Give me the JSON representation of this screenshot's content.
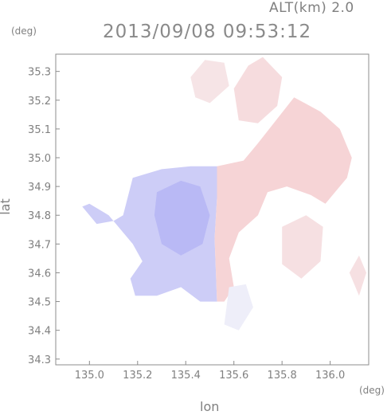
{
  "header": {
    "altitude_label": "ALT(km) 2.0",
    "timestamp": "2013/09/08 09:53:12"
  },
  "axes": {
    "x_unit": "(deg)",
    "y_unit": "(deg)",
    "x_label": "lon",
    "y_label": "lat"
  },
  "chart_data": {
    "type": "heatmap",
    "title": "2013/09/08 09:53:12",
    "subtitle": "ALT(km) 2.0",
    "xlabel": "lon",
    "ylabel": "lat",
    "xlim": [
      134.86,
      136.16
    ],
    "ylim": [
      34.28,
      35.36
    ],
    "x_ticks": [
      "135.0",
      "135.2",
      "135.4",
      "135.6",
      "135.8",
      "136.0"
    ],
    "y_ticks": [
      "34.3",
      "34.4",
      "34.5",
      "34.6",
      "34.7",
      "34.8",
      "34.9",
      "35.0",
      "35.1",
      "35.2",
      "35.3"
    ],
    "colormap": {
      "negative": "#aaaaf4",
      "zero": "#f7f7fa",
      "positive": "#f4aaaa"
    },
    "legend": "none",
    "grid": false,
    "regions": [
      {
        "name": "negative-west",
        "sign": "negative",
        "intensity": 0.55,
        "polygon": [
          [
            135.18,
            34.93
          ],
          [
            135.3,
            34.96
          ],
          [
            135.42,
            34.97
          ],
          [
            135.53,
            34.97
          ],
          [
            135.53,
            34.86
          ],
          [
            135.52,
            34.72
          ],
          [
            135.53,
            34.5
          ],
          [
            135.46,
            34.5
          ],
          [
            135.38,
            34.55
          ],
          [
            135.28,
            34.52
          ],
          [
            135.19,
            34.52
          ],
          [
            135.17,
            34.58
          ],
          [
            135.22,
            34.64
          ],
          [
            135.18,
            34.7
          ],
          [
            135.08,
            34.8
          ],
          [
            135.0,
            34.84
          ],
          [
            134.97,
            34.83
          ],
          [
            135.03,
            34.77
          ],
          [
            135.1,
            34.78
          ],
          [
            135.14,
            34.8
          ]
        ]
      },
      {
        "name": "negative-core",
        "sign": "negative",
        "intensity": 0.8,
        "polygon": [
          [
            135.28,
            34.88
          ],
          [
            135.38,
            34.92
          ],
          [
            135.46,
            34.9
          ],
          [
            135.5,
            34.8
          ],
          [
            135.47,
            34.7
          ],
          [
            135.38,
            34.66
          ],
          [
            135.3,
            34.7
          ],
          [
            135.27,
            34.8
          ]
        ]
      },
      {
        "name": "positive-east",
        "sign": "positive",
        "intensity": 0.45,
        "polygon": [
          [
            135.53,
            34.97
          ],
          [
            135.64,
            34.99
          ],
          [
            135.7,
            35.05
          ],
          [
            135.85,
            35.21
          ],
          [
            135.96,
            35.16
          ],
          [
            136.04,
            35.1
          ],
          [
            136.09,
            35.0
          ],
          [
            136.07,
            34.93
          ],
          [
            136.02,
            34.88
          ],
          [
            135.98,
            34.84
          ],
          [
            135.92,
            34.87
          ],
          [
            135.82,
            34.9
          ],
          [
            135.74,
            34.88
          ],
          [
            135.7,
            34.8
          ],
          [
            135.62,
            34.74
          ],
          [
            135.58,
            34.65
          ],
          [
            135.6,
            34.55
          ],
          [
            135.56,
            34.5
          ],
          [
            135.53,
            34.5
          ],
          [
            135.52,
            34.72
          ],
          [
            135.53,
            34.86
          ]
        ]
      },
      {
        "name": "positive-north",
        "sign": "positive",
        "intensity": 0.35,
        "polygon": [
          [
            135.6,
            35.24
          ],
          [
            135.66,
            35.32
          ],
          [
            135.72,
            35.35
          ],
          [
            135.8,
            35.28
          ],
          [
            135.78,
            35.18
          ],
          [
            135.7,
            35.12
          ],
          [
            135.62,
            35.13
          ]
        ]
      },
      {
        "name": "positive-northwest",
        "sign": "positive",
        "intensity": 0.25,
        "polygon": [
          [
            135.42,
            35.28
          ],
          [
            135.48,
            35.34
          ],
          [
            135.56,
            35.33
          ],
          [
            135.58,
            35.25
          ],
          [
            135.5,
            35.19
          ],
          [
            135.44,
            35.21
          ]
        ]
      },
      {
        "name": "positive-southeast",
        "sign": "positive",
        "intensity": 0.3,
        "polygon": [
          [
            135.8,
            34.76
          ],
          [
            135.9,
            34.8
          ],
          [
            135.97,
            34.76
          ],
          [
            135.96,
            34.64
          ],
          [
            135.88,
            34.58
          ],
          [
            135.8,
            34.63
          ]
        ]
      },
      {
        "name": "positive-far-east",
        "sign": "positive",
        "intensity": 0.3,
        "polygon": [
          [
            136.08,
            34.6
          ],
          [
            136.12,
            34.66
          ],
          [
            136.15,
            34.6
          ],
          [
            136.12,
            34.52
          ]
        ]
      },
      {
        "name": "neutral-south",
        "sign": "negative",
        "intensity": 0.12,
        "polygon": [
          [
            135.58,
            34.55
          ],
          [
            135.65,
            34.56
          ],
          [
            135.68,
            34.48
          ],
          [
            135.62,
            34.4
          ],
          [
            135.56,
            34.42
          ]
        ]
      }
    ]
  }
}
